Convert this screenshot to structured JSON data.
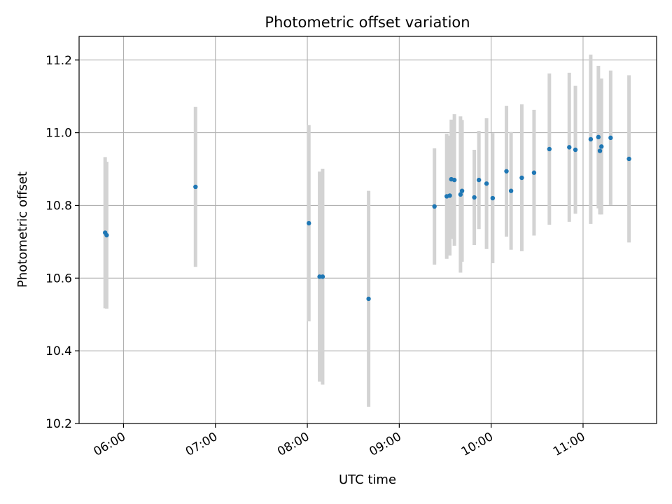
{
  "chart_data": {
    "type": "scatter",
    "title": "Photometric offset variation",
    "xlabel": "UTC time",
    "ylabel": "Photometric offset",
    "xlim": [
      "05:31",
      "11:48"
    ],
    "ylim": [
      10.2,
      11.265
    ],
    "x_ticks": [
      "06:00",
      "07:00",
      "08:00",
      "09:00",
      "10:00",
      "11:00"
    ],
    "y_ticks": [
      10.2,
      10.4,
      10.6,
      10.8,
      11.0,
      11.2
    ],
    "grid": true,
    "marker_color": "#1f77b4",
    "errorbar_color": "#d3d3d3",
    "points": [
      {
        "x": "05:48",
        "y": 10.725,
        "err": 0.208
      },
      {
        "x": "05:49",
        "y": 10.718,
        "err": 0.202
      },
      {
        "x": "06:47",
        "y": 10.851,
        "err": 0.22
      },
      {
        "x": "08:01",
        "y": 10.751,
        "err": 0.27
      },
      {
        "x": "08:08",
        "y": 10.604,
        "err": 0.289
      },
      {
        "x": "08:10",
        "y": 10.604,
        "err": 0.297
      },
      {
        "x": "08:40",
        "y": 10.543,
        "err": 0.297
      },
      {
        "x": "09:23",
        "y": 10.797,
        "err": 0.16
      },
      {
        "x": "09:31",
        "y": 10.825,
        "err": 0.172
      },
      {
        "x": "09:33",
        "y": 10.827,
        "err": 0.165
      },
      {
        "x": "09:34",
        "y": 10.872,
        "err": 0.164
      },
      {
        "x": "09:36",
        "y": 10.87,
        "err": 0.181
      },
      {
        "x": "09:40",
        "y": 10.83,
        "err": 0.215
      },
      {
        "x": "09:41",
        "y": 10.84,
        "err": 0.195
      },
      {
        "x": "09:49",
        "y": 10.822,
        "err": 0.131
      },
      {
        "x": "09:52",
        "y": 10.87,
        "err": 0.135
      },
      {
        "x": "09:57",
        "y": 10.86,
        "err": 0.18
      },
      {
        "x": "10:01",
        "y": 10.82,
        "err": 0.179
      },
      {
        "x": "10:10",
        "y": 10.894,
        "err": 0.18
      },
      {
        "x": "10:13",
        "y": 10.84,
        "err": 0.162
      },
      {
        "x": "10:20",
        "y": 10.876,
        "err": 0.202
      },
      {
        "x": "10:28",
        "y": 10.89,
        "err": 0.173
      },
      {
        "x": "10:38",
        "y": 10.955,
        "err": 0.208
      },
      {
        "x": "10:51",
        "y": 10.96,
        "err": 0.205
      },
      {
        "x": "10:55",
        "y": 10.953,
        "err": 0.176
      },
      {
        "x": "11:05",
        "y": 10.982,
        "err": 0.233
      },
      {
        "x": "11:10",
        "y": 10.988,
        "err": 0.196
      },
      {
        "x": "11:11",
        "y": 10.95,
        "err": 0.175
      },
      {
        "x": "11:12",
        "y": 10.962,
        "err": 0.187
      },
      {
        "x": "11:18",
        "y": 10.986,
        "err": 0.185
      },
      {
        "x": "11:30",
        "y": 10.928,
        "err": 0.23
      }
    ]
  }
}
